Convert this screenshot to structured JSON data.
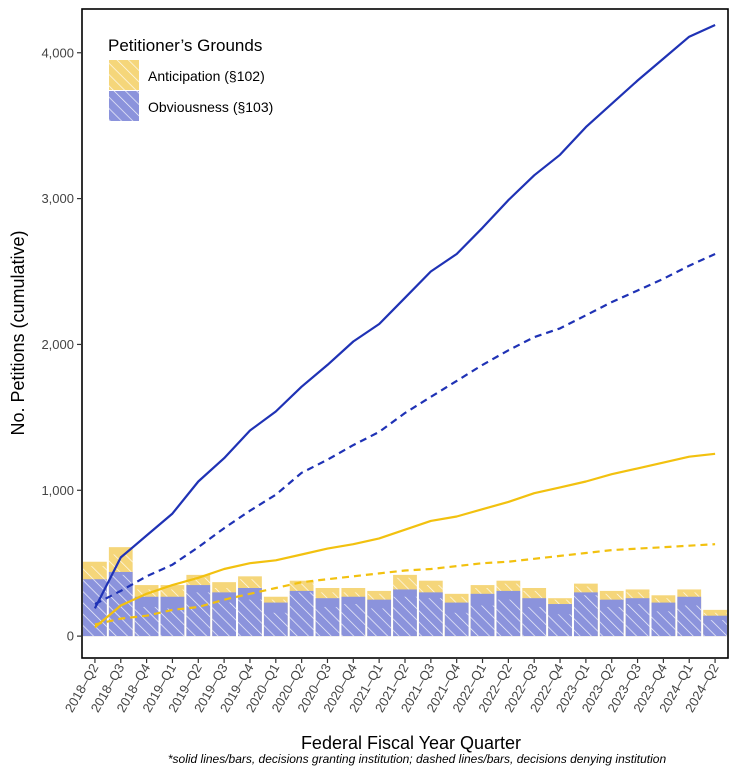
{
  "chart_data": {
    "type": "bar+line",
    "xlabel": "Federal Fiscal Year Quarter",
    "ylabel": "No. Petitions (cumulative)",
    "caption": "*solid lines/bars, decisions granting institution; dashed lines/bars, decisions denying institution",
    "ylim": [
      -150,
      4300
    ],
    "yticks": [
      0,
      1000,
      2000,
      3000,
      4000
    ],
    "ytick_labels": [
      "0",
      "1,000",
      "2,000",
      "3,000",
      "4,000"
    ],
    "categories": [
      "2018–Q2",
      "2018–Q3",
      "2018–Q4",
      "2019–Q1",
      "2019–Q2",
      "2019–Q3",
      "2019–Q4",
      "2020–Q1",
      "2020–Q2",
      "2020–Q3",
      "2020–Q4",
      "2021–Q1",
      "2021–Q2",
      "2021–Q3",
      "2021–Q4",
      "2022–Q1",
      "2022–Q2",
      "2022–Q3",
      "2022–Q4",
      "2023–Q1",
      "2023–Q2",
      "2023–Q3",
      "2023–Q4",
      "2024–Q1",
      "2024–Q2"
    ],
    "legend": {
      "title": "Petitioner’s Grounds",
      "placement": "top-left",
      "items": [
        {
          "label": "Anticipation (§102)",
          "color": "#F5D67A"
        },
        {
          "label": "Obviousness (§103)",
          "color": "#8B93DC"
        }
      ]
    },
    "colors": {
      "anticipation_bar": "#F5D67A",
      "obviousness_bar": "#8B93DC",
      "obviousness_line": "#1F32B5",
      "anticipation_line": "#F2C10F"
    },
    "bars": {
      "obviousness_total": [
        390,
        440,
        270,
        270,
        350,
        300,
        330,
        230,
        310,
        260,
        270,
        250,
        320,
        300,
        230,
        290,
        310,
        260,
        220,
        300,
        250,
        260,
        230,
        270,
        140
      ],
      "anticipation_total": [
        510,
        610,
        350,
        350,
        420,
        370,
        410,
        270,
        380,
        330,
        330,
        310,
        420,
        380,
        290,
        350,
        380,
        330,
        260,
        360,
        310,
        320,
        280,
        320,
        180
      ],
      "obviousness_denied": [
        390,
        420,
        200,
        190,
        300,
        230,
        250,
        160,
        300,
        200,
        220,
        190,
        270,
        260,
        160,
        210,
        250,
        200,
        150,
        280,
        200,
        220,
        170,
        210,
        110
      ],
      "anticipation_denied": [
        480,
        560,
        320,
        320,
        400,
        330,
        390,
        250,
        360,
        300,
        300,
        290,
        400,
        350,
        270,
        330,
        360,
        310,
        250,
        340,
        290,
        300,
        260,
        300,
        160
      ]
    },
    "series": [
      {
        "style": "solid",
        "color": "#1F32B5",
        "values": [
          190,
          540,
          690,
          840,
          1060,
          1220,
          1410,
          1540,
          1710,
          1860,
          2020,
          2140,
          2320,
          2500,
          2620,
          2800,
          2990,
          3160,
          3300,
          3490,
          3650,
          3810,
          3960,
          4110,
          4190
        ]
      },
      {
        "style": "dashed",
        "color": "#1F32B5",
        "values": [
          220,
          310,
          410,
          490,
          610,
          740,
          860,
          970,
          1120,
          1210,
          1310,
          1400,
          1530,
          1640,
          1750,
          1860,
          1960,
          2050,
          2110,
          2200,
          2290,
          2370,
          2450,
          2540,
          2620
        ]
      },
      {
        "style": "solid",
        "color": "#F2C10F",
        "values": [
          60,
          210,
          290,
          350,
          400,
          460,
          500,
          520,
          560,
          600,
          630,
          670,
          730,
          790,
          820,
          870,
          920,
          980,
          1020,
          1060,
          1110,
          1150,
          1190,
          1230,
          1250
        ]
      },
      {
        "style": "dashed",
        "color": "#F2C10F",
        "values": [
          80,
          120,
          140,
          180,
          200,
          250,
          290,
          330,
          370,
          390,
          410,
          430,
          450,
          460,
          480,
          500,
          510,
          530,
          550,
          570,
          590,
          600,
          610,
          620,
          630
        ]
      }
    ]
  }
}
